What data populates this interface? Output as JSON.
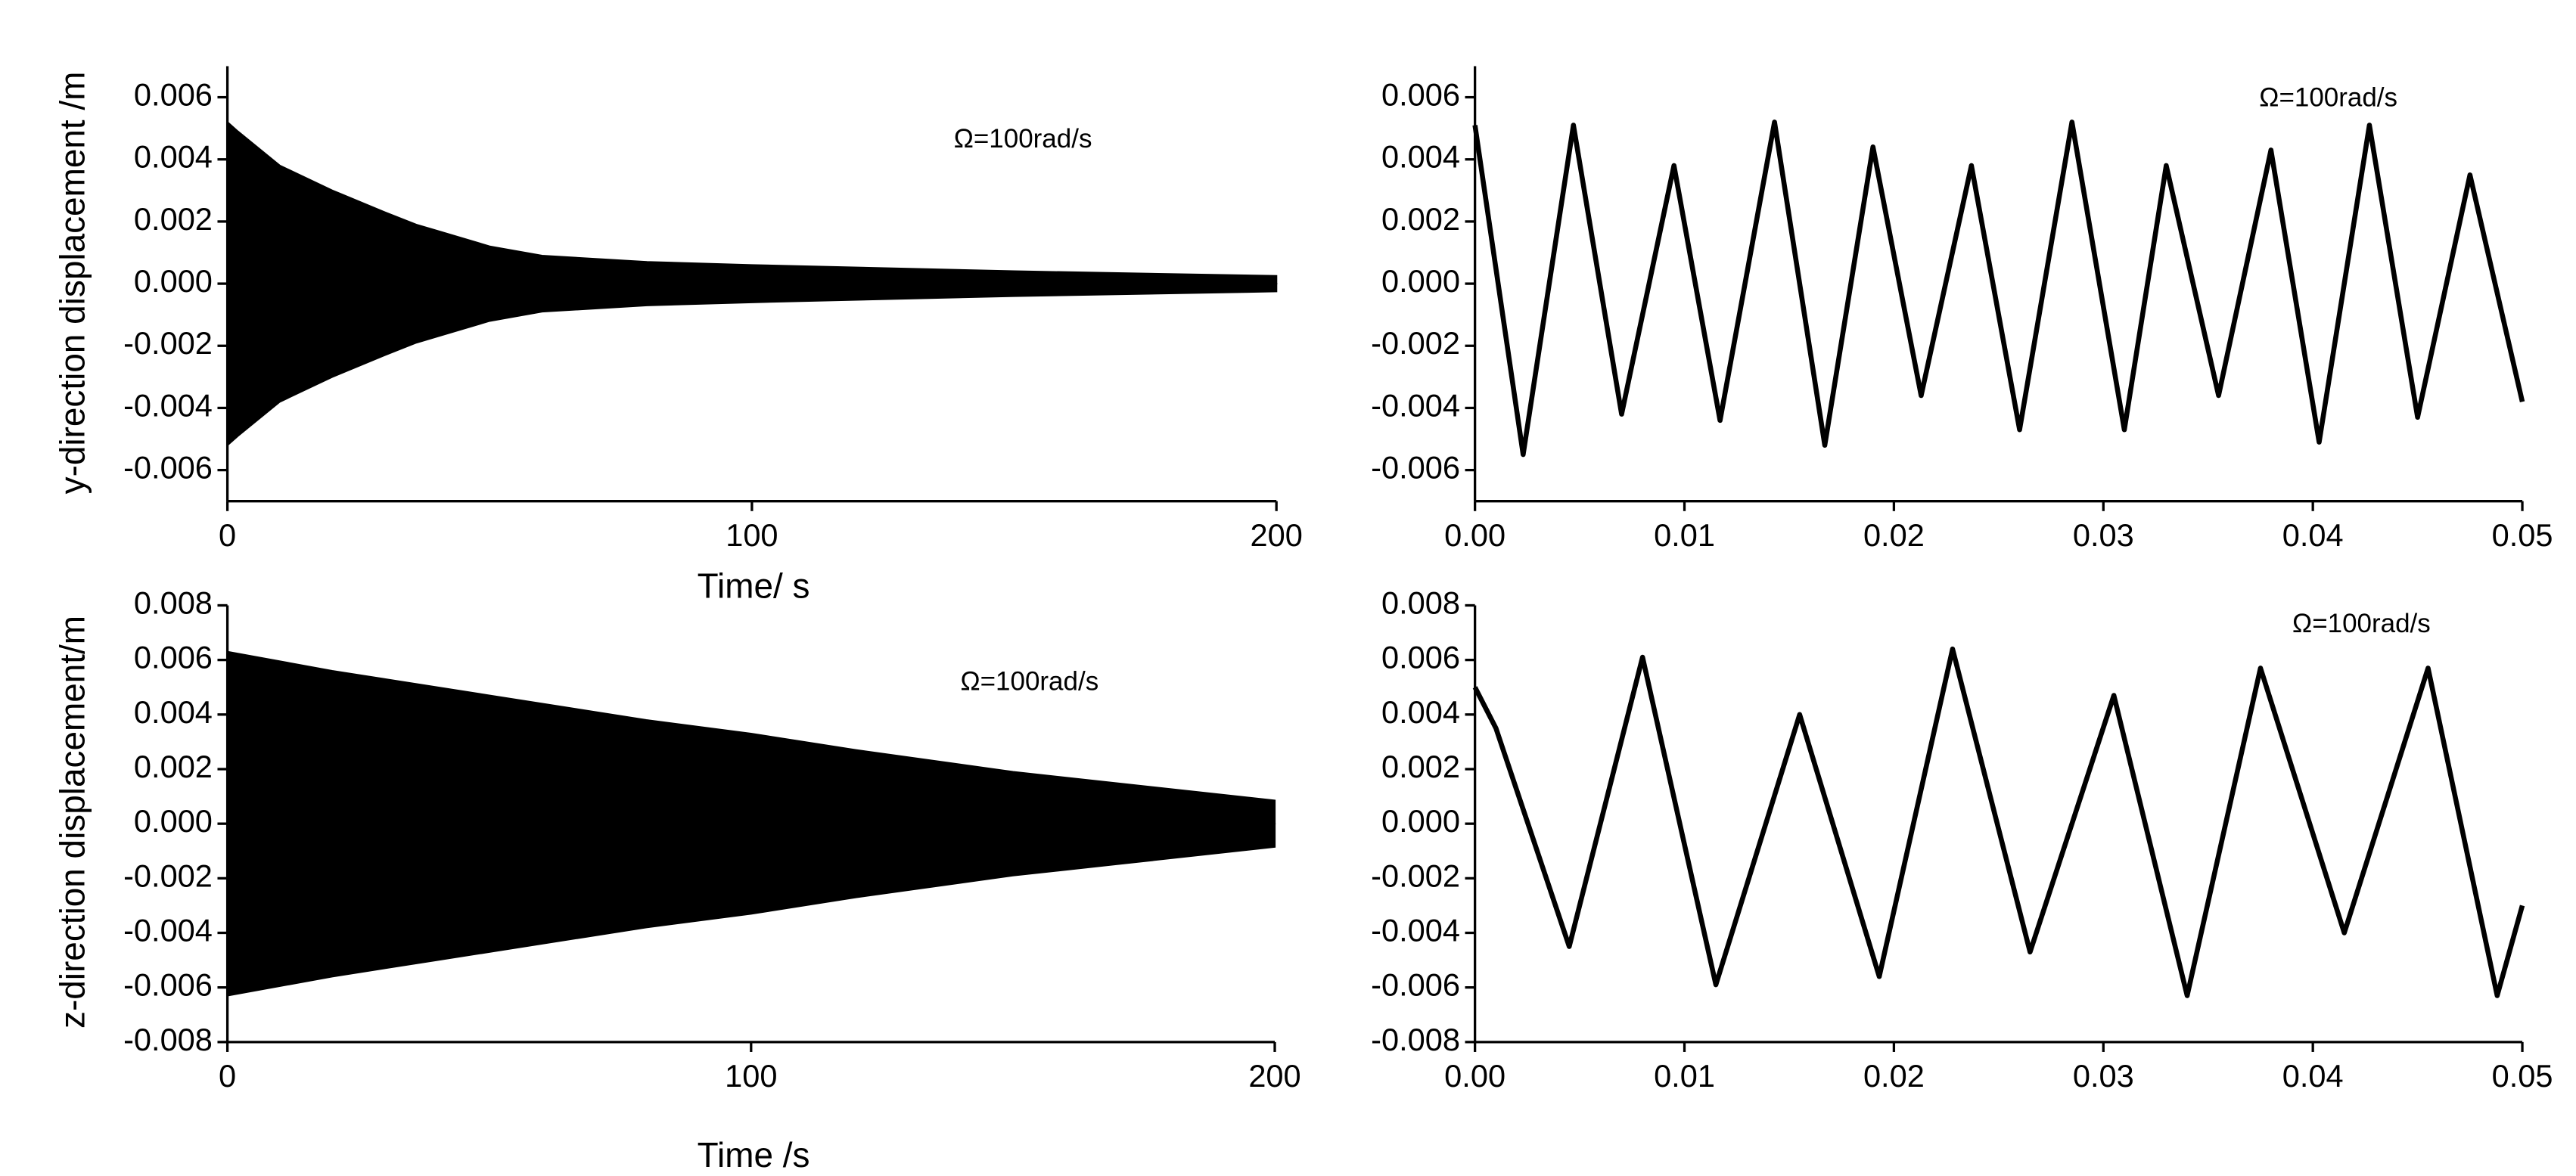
{
  "chart_data": [
    {
      "type": "area",
      "ylabel": "y-direction displacement /m",
      "xlabel": "Time/ s",
      "annotation": "Ω=100rad/s",
      "x": [
        0,
        2,
        10,
        20,
        30,
        36,
        40,
        50,
        60,
        80,
        100,
        150,
        200
      ],
      "series": [
        {
          "color": "#000000",
          "values": [
            0.0052,
            0.0049,
            0.0038,
            0.003,
            0.0023,
            0.0019,
            0.0017,
            0.0012,
            0.0009,
            0.0007,
            0.0006,
            0.0004,
            0.00025
          ]
        },
        {
          "color": "#000000",
          "values": [
            -0.0052,
            -0.0049,
            -0.0038,
            -0.003,
            -0.0023,
            -0.0019,
            -0.0017,
            -0.0012,
            -0.0009,
            -0.0007,
            -0.0006,
            -0.0004,
            -0.00025
          ]
        }
      ],
      "xlim": [
        0,
        200
      ],
      "xticks": [
        0,
        100,
        200
      ],
      "ylim": [
        -0.007,
        0.007
      ],
      "yticks": [
        -0.006,
        -0.004,
        -0.002,
        {
          "value": 0,
          "label": "0.000"
        },
        0.002,
        0.004,
        0.006
      ]
    },
    {
      "type": "line",
      "annotation": "Ω=100rad/s",
      "x": [
        0,
        0.0023,
        0.0047,
        0.007,
        0.0095,
        0.0117,
        0.0143,
        0.0167,
        0.019,
        0.0213,
        0.0237,
        0.026,
        0.0285,
        0.031,
        0.033,
        0.0355,
        0.038,
        0.0403,
        0.0427,
        0.045,
        0.0475,
        0.05
      ],
      "series": [
        {
          "color": "#000000",
          "values": [
            0.0051,
            -0.0055,
            0.0051,
            -0.0042,
            0.0038,
            -0.0044,
            0.0052,
            -0.0052,
            0.0044,
            -0.0036,
            0.0038,
            -0.0047,
            0.0052,
            -0.0047,
            0.0038,
            -0.0036,
            0.0043,
            -0.0051,
            0.0051,
            -0.0043,
            0.0035,
            -0.0038
          ]
        }
      ],
      "xlim": [
        0,
        0.05
      ],
      "xticks": [
        {
          "value": 0,
          "label": "0.00"
        },
        0.01,
        0.02,
        0.03,
        0.04,
        0.05
      ],
      "ylim": [
        -0.007,
        0.007
      ],
      "yticks": [
        -0.006,
        -0.004,
        -0.002,
        {
          "value": 0,
          "label": "0.000"
        },
        0.002,
        0.004,
        0.006
      ]
    },
    {
      "type": "area",
      "ylabel": "z-direction displacement/m",
      "xlabel": "Time /s",
      "annotation": "Ω=100rad/s",
      "x": [
        0,
        20,
        50,
        80,
        100,
        120,
        150,
        200
      ],
      "series": [
        {
          "color": "#000000",
          "values": [
            0.0063,
            0.0056,
            0.0047,
            0.0038,
            0.0033,
            0.0027,
            0.0019,
            0.00085
          ]
        },
        {
          "color": "#000000",
          "values": [
            -0.0063,
            -0.0056,
            -0.0047,
            -0.0038,
            -0.0033,
            -0.0027,
            -0.0019,
            -0.00085
          ]
        }
      ],
      "xlim": [
        0,
        200
      ],
      "xticks": [
        0,
        100,
        200
      ],
      "ylim": [
        -0.008,
        0.008
      ],
      "yticks": [
        -0.008,
        -0.006,
        -0.004,
        -0.002,
        {
          "value": 0,
          "label": "0.000"
        },
        0.002,
        0.004,
        0.006,
        0.008
      ]
    },
    {
      "type": "line",
      "annotation": "Ω=100rad/s",
      "x": [
        0,
        0.001,
        0.0045,
        0.008,
        0.0115,
        0.0155,
        0.0193,
        0.0228,
        0.0265,
        0.0305,
        0.034,
        0.0375,
        0.0415,
        0.0455,
        0.0488,
        0.05
      ],
      "series": [
        {
          "color": "#000000",
          "values": [
            0.005,
            0.0035,
            -0.0045,
            0.0061,
            -0.0059,
            0.004,
            -0.0056,
            0.0064,
            -0.0047,
            0.0047,
            -0.0063,
            0.0057,
            -0.004,
            0.0057,
            -0.0063,
            -0.003
          ]
        }
      ],
      "xlim": [
        0,
        0.05
      ],
      "xticks": [
        {
          "value": 0,
          "label": "0.00"
        },
        0.01,
        0.02,
        0.03,
        0.04,
        0.05
      ],
      "ylim": [
        -0.008,
        0.008
      ],
      "yticks": [
        -0.008,
        -0.006,
        -0.004,
        -0.002,
        {
          "value": 0,
          "label": "0.000"
        },
        0.002,
        0.004,
        0.006,
        0.008
      ]
    }
  ]
}
